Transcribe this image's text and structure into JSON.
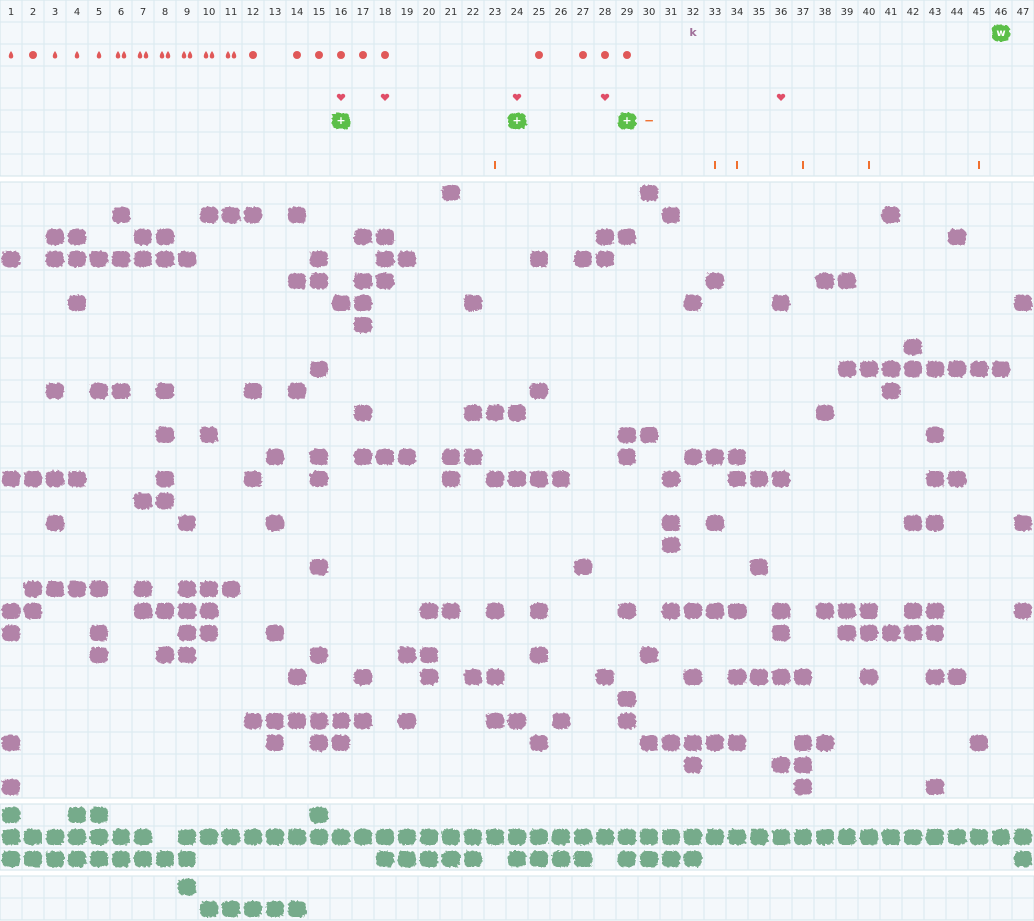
{
  "columns": [
    1,
    2,
    3,
    4,
    5,
    6,
    7,
    8,
    9,
    10,
    11,
    12,
    13,
    14,
    15,
    16,
    17,
    18,
    19,
    20,
    21,
    22,
    23,
    24,
    25,
    26,
    27,
    28,
    29,
    30,
    31,
    32,
    33,
    34,
    35,
    36,
    37,
    38,
    39,
    40,
    41,
    42,
    43,
    44,
    45,
    46,
    47
  ],
  "top": {
    "k": {
      "col": 32,
      "text": "k"
    },
    "w": {
      "col": 46,
      "text": "w"
    },
    "drops": [
      1,
      3,
      4,
      5
    ],
    "double_drops": [
      6,
      7,
      8,
      9,
      10,
      11
    ],
    "dots": [
      2,
      12,
      14,
      15,
      16,
      17,
      18,
      25,
      27,
      28,
      29
    ],
    "hearts": [
      16,
      18,
      24,
      28,
      36
    ],
    "plus": {
      "cols": [
        16,
        24,
        29
      ],
      "text": "+"
    },
    "minus": {
      "col": 30,
      "text": "−"
    },
    "ticks": [
      23,
      33,
      34,
      37,
      40,
      45
    ]
  },
  "purple": {
    "rows": [
      [
        21,
        30
      ],
      [
        6,
        10,
        11,
        12,
        14,
        31,
        41
      ],
      [
        3,
        4,
        7,
        8,
        17,
        18,
        28,
        29,
        44
      ],
      [
        1,
        3,
        4,
        5,
        6,
        7,
        8,
        9,
        15,
        18,
        19,
        25,
        27,
        28
      ],
      [
        14,
        15,
        17,
        18,
        33,
        38,
        39
      ],
      [
        4,
        16,
        17,
        22,
        32,
        36,
        47
      ],
      [
        17
      ],
      [
        42
      ],
      [
        15,
        39,
        40,
        41,
        42,
        43,
        44,
        45,
        46
      ],
      [
        3,
        5,
        6,
        8,
        12,
        14,
        25,
        41
      ],
      [
        17,
        22,
        23,
        24,
        38
      ],
      [
        8,
        10,
        29,
        30,
        43
      ],
      [
        13,
        15,
        17,
        18,
        19,
        21,
        22,
        29,
        32,
        33,
        34
      ],
      [
        1,
        2,
        3,
        4,
        8,
        12,
        15,
        21,
        23,
        24,
        25,
        26,
        31,
        34,
        35,
        36,
        43,
        44
      ],
      [
        7,
        8
      ],
      [
        3,
        9,
        13,
        31,
        33,
        42,
        43,
        47
      ],
      [
        31
      ],
      [
        15,
        27,
        35
      ],
      [
        2,
        3,
        4,
        5,
        7,
        9,
        10,
        11
      ],
      [
        1,
        2,
        7,
        8,
        9,
        10,
        20,
        21,
        23,
        25,
        29,
        31,
        32,
        33,
        34,
        36,
        38,
        39,
        40,
        42,
        43,
        47
      ],
      [
        1,
        5,
        9,
        10,
        13,
        36,
        39,
        40,
        41,
        42,
        43
      ],
      [
        5,
        8,
        9,
        15,
        19,
        20,
        25,
        30
      ],
      [
        14,
        17,
        20,
        22,
        23,
        28,
        32,
        34,
        35,
        36,
        37,
        40,
        43,
        44
      ],
      [
        29
      ],
      [
        12,
        13,
        14,
        15,
        16,
        17,
        19,
        23,
        24,
        26,
        29
      ],
      [
        1,
        13,
        15,
        16,
        25,
        30,
        31,
        32,
        33,
        34,
        37,
        38,
        45
      ],
      [
        32,
        36,
        37
      ],
      [
        1,
        37,
        43
      ]
    ]
  },
  "green": {
    "rows": [
      [
        1,
        4,
        5,
        15
      ],
      [
        1,
        2,
        3,
        4,
        5,
        6,
        7,
        9,
        10,
        11,
        12,
        13,
        14,
        15,
        16,
        17,
        18,
        19,
        20,
        21,
        22,
        23,
        24,
        25,
        26,
        27,
        28,
        29,
        30,
        31,
        32,
        33,
        34,
        35,
        36,
        37,
        38,
        39,
        40,
        41,
        42,
        43,
        44,
        45,
        46,
        47
      ],
      [
        1,
        2,
        3,
        4,
        5,
        6,
        7,
        8,
        9,
        18,
        19,
        20,
        21,
        22,
        24,
        25,
        26,
        27,
        29,
        30,
        31,
        32,
        47
      ]
    ]
  },
  "bottom": {
    "rows": [
      [
        9
      ],
      [
        10,
        11,
        12,
        13,
        14
      ]
    ]
  }
}
